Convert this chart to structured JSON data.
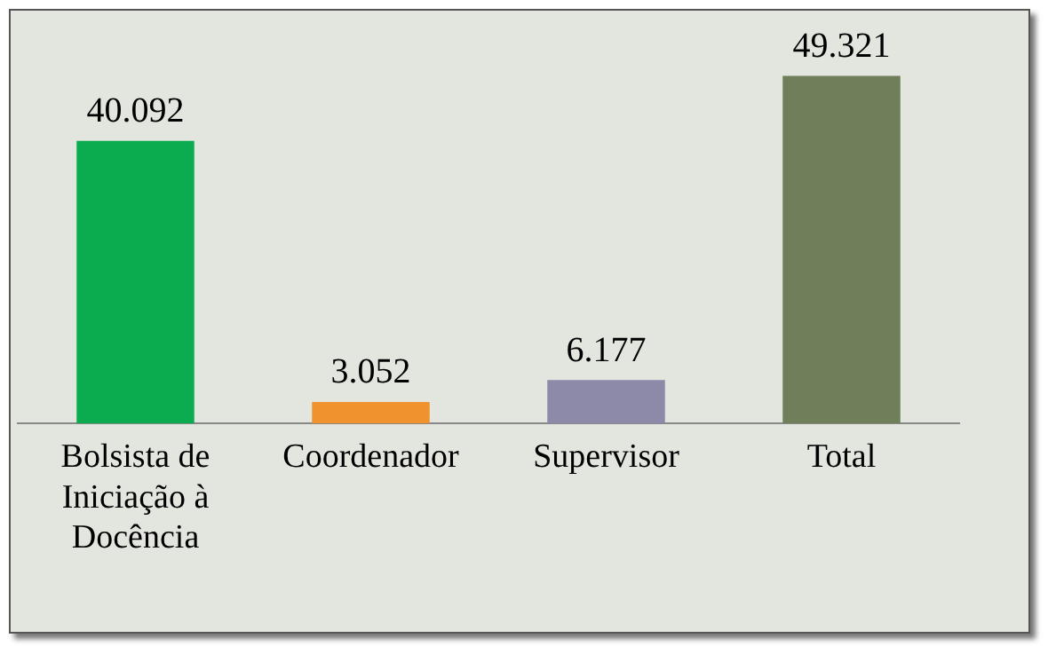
{
  "chart_data": {
    "type": "bar",
    "categories": [
      "Bolsista de Iniciação à Docência",
      "Coordenador",
      "Supervisor",
      "Total"
    ],
    "values": [
      40092,
      3052,
      6177,
      49321
    ],
    "colors": [
      "#0bab4f",
      "#f0922e",
      "#8c89a9",
      "#6f7f5a"
    ],
    "value_labels": [
      "40.092",
      "3.052",
      "6.177",
      "49.321"
    ],
    "grid": false,
    "legend": false
  }
}
